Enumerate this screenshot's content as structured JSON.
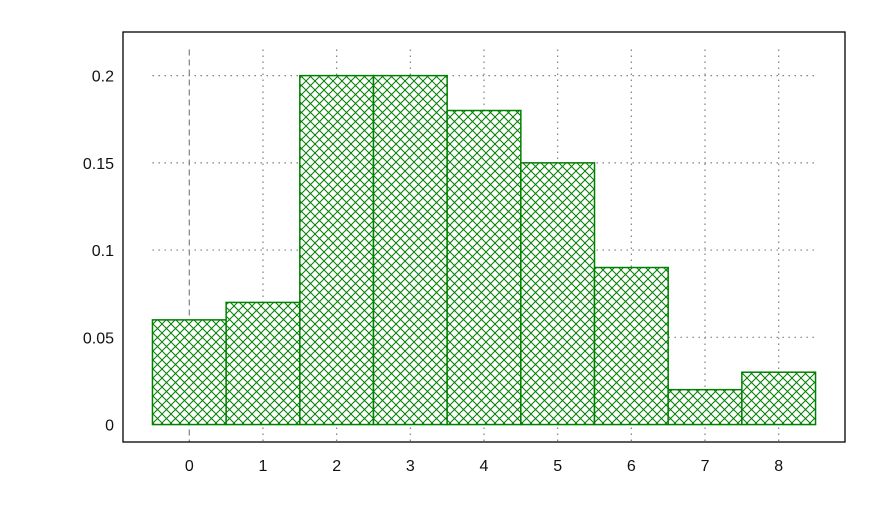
{
  "chart_data": {
    "type": "bar",
    "categories": [
      "0",
      "1",
      "2",
      "3",
      "4",
      "5",
      "6",
      "7",
      "8"
    ],
    "x": [
      0,
      1,
      2,
      3,
      4,
      5,
      6,
      7,
      8
    ],
    "values": [
      0.06,
      0.07,
      0.2,
      0.2,
      0.18,
      0.15,
      0.09,
      0.02,
      0.03
    ],
    "title": "",
    "xlabel": "",
    "ylabel": "",
    "xlim": [
      -0.9,
      8.9
    ],
    "ylim": [
      -0.01,
      0.225
    ],
    "yticks": [
      0,
      0.05,
      0.1,
      0.15,
      0.2
    ],
    "ytick_labels": [
      "0",
      "0.05",
      "0.1",
      "0.15",
      "0.2"
    ],
    "xtick_labels": [
      "0",
      "1",
      "2",
      "3",
      "4",
      "5",
      "6",
      "7",
      "8"
    ],
    "grid": true,
    "legend": "none",
    "bar_fill": "crosshatch",
    "colors": {
      "bar_stroke": "#008000",
      "hatch": "#008000",
      "bar_background": "#ffffff",
      "frame": "#000000",
      "grid": "#808080",
      "background": "#ffffff"
    }
  }
}
